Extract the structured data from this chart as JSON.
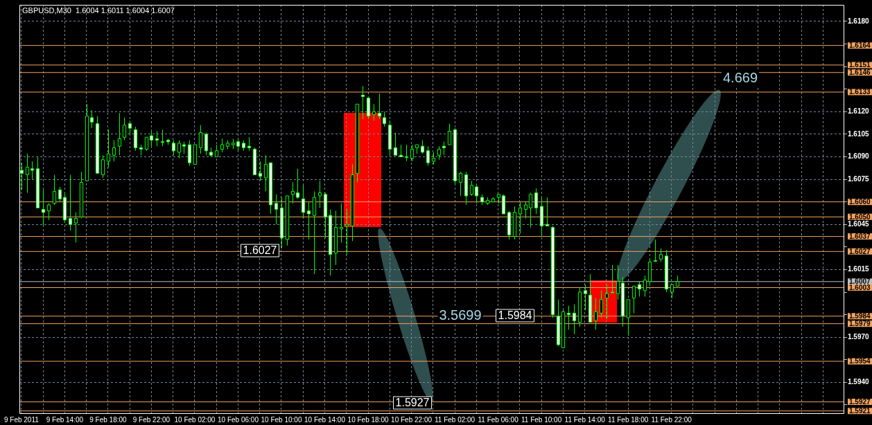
{
  "chart_data": {
    "type": "candlestick",
    "title": "GBPUSD,M30  1.6004 1.6011 1.6004 1.6007",
    "grid": true,
    "colors": [
      "#ffffff",
      "#000000",
      "#ffffff",
      "#ffffff",
      "#ffffff",
      "#000000",
      "#000000",
      "#ffffff",
      "#ffffff",
      "#ffffff",
      "#000000",
      "#000000",
      "#000000",
      "#ffffff",
      "#ffffff",
      "#000000",
      "#000000",
      "#000000",
      "#000000",
      "#000000",
      "#ffffff",
      "#ffffff",
      "#ffffff",
      "#000000",
      "#ffffff",
      "#ffffff",
      "#ffffff",
      "#ffffff",
      "#ffffff",
      "#000000",
      "#ffffff",
      "#ffffff",
      "#000000",
      "#000000",
      "#ffffff",
      "#ffffff",
      "#000000",
      "#000000",
      "#000000",
      "#000000",
      "#ffffff",
      "#ffffff",
      "#ffffff",
      "#ffffff",
      "#ffffff",
      "#000000",
      "#ffffff",
      "#ffffff",
      "#ffffff",
      "#000000",
      "#000000",
      "#ffffff",
      "#ffffff",
      "#ffffff",
      "#000000",
      "#000000",
      "#ffffff",
      "#ffffff",
      "#000000",
      "#000000",
      "#000000",
      "#000000",
      "#000000",
      "#ffffff",
      "#ffffff",
      "#000000",
      "#ffffff",
      "#ffffff",
      "#ffffff",
      "#ffffff",
      "#ffffff",
      "#ffffff",
      "#000000",
      "#000000",
      "#ffffff",
      "#ffffff",
      "#000000",
      "#000000",
      "#ffffff",
      "#000000",
      "#ffffff",
      "#000000",
      "#ffffff",
      "#000000",
      "#ffffff",
      "#ffffff",
      "#000000",
      "#000000",
      "#000000",
      "#ffffff",
      "#ffffff",
      "#000000",
      "#000000",
      "#000000",
      "#000000",
      "#ffffff",
      "#ffffff",
      "#ffffff",
      "#ffffff",
      "#ffffff",
      "#000000",
      "#ffffff",
      "#ffffff",
      "#000000",
      "#ffffff",
      "#ffffff",
      "#000000",
      "#000000",
      "#000000",
      "#ffffff",
      "#000000",
      "#ffffff",
      "#000000",
      "#000000",
      "#ffffff",
      "#000000",
      "#000000",
      "#ffffff",
      "#000000",
      "#ffffff",
      "#000000",
      "#000000"
    ],
    "x": [
      "2011-02-09T10:00",
      "2011-02-09T10:30",
      "2011-02-09T11:00",
      "2011-02-09T11:30",
      "2011-02-09T12:00",
      "2011-02-09T12:30",
      "2011-02-09T13:00",
      "2011-02-09T13:30",
      "2011-02-09T14:00",
      "2011-02-09T14:30",
      "2011-02-09T15:00",
      "2011-02-09T15:30",
      "2011-02-09T16:00",
      "2011-02-09T16:30",
      "2011-02-09T17:00",
      "2011-02-09T17:30",
      "2011-02-09T18:00",
      "2011-02-09T18:30",
      "2011-02-09T19:00",
      "2011-02-09T19:30",
      "2011-02-09T20:00",
      "2011-02-09T20:30",
      "2011-02-09T21:00",
      "2011-02-09T21:30",
      "2011-02-09T22:00",
      "2011-02-09T22:30",
      "2011-02-09T23:00",
      "2011-02-09T23:30",
      "2011-02-10T00:00",
      "2011-02-10T00:30",
      "2011-02-10T01:00",
      "2011-02-10T01:30",
      "2011-02-10T02:00",
      "2011-02-10T02:30",
      "2011-02-10T03:00",
      "2011-02-10T03:30",
      "2011-02-10T04:00",
      "2011-02-10T04:30",
      "2011-02-10T05:00",
      "2011-02-10T05:30",
      "2011-02-10T06:00",
      "2011-02-10T06:30",
      "2011-02-10T07:00",
      "2011-02-10T07:30",
      "2011-02-10T08:00",
      "2011-02-10T08:30",
      "2011-02-10T09:00",
      "2011-02-10T09:30",
      "2011-02-10T10:00",
      "2011-02-10T10:30",
      "2011-02-10T11:00",
      "2011-02-10T11:30",
      "2011-02-10T12:00",
      "2011-02-10T12:30",
      "2011-02-10T13:00",
      "2011-02-10T13:30",
      "2011-02-10T14:00",
      "2011-02-10T14:30",
      "2011-02-10T15:00",
      "2011-02-10T15:30",
      "2011-02-10T16:00",
      "2011-02-10T16:30",
      "2011-02-10T17:00",
      "2011-02-10T17:30",
      "2011-02-10T18:00",
      "2011-02-10T18:30",
      "2011-02-10T19:00",
      "2011-02-10T19:30",
      "2011-02-10T20:00",
      "2011-02-10T20:30",
      "2011-02-10T21:00",
      "2011-02-10T21:30",
      "2011-02-10T22:00",
      "2011-02-10T22:30",
      "2011-02-10T23:00",
      "2011-02-10T23:30",
      "2011-02-11T00:00",
      "2011-02-11T00:30",
      "2011-02-11T01:00",
      "2011-02-11T01:30",
      "2011-02-11T02:00",
      "2011-02-11T02:30",
      "2011-02-11T03:00",
      "2011-02-11T03:30",
      "2011-02-11T04:00",
      "2011-02-11T04:30",
      "2011-02-11T05:00",
      "2011-02-11T05:30",
      "2011-02-11T06:00",
      "2011-02-11T06:30",
      "2011-02-11T07:00",
      "2011-02-11T07:30",
      "2011-02-11T08:00",
      "2011-02-11T08:30",
      "2011-02-11T09:00",
      "2011-02-11T09:30",
      "2011-02-11T10:00",
      "2011-02-11T10:30",
      "2011-02-11T11:00",
      "2011-02-11T11:30",
      "2011-02-11T12:00",
      "2011-02-11T12:30",
      "2011-02-11T13:00",
      "2011-02-11T13:30",
      "2011-02-11T14:00",
      "2011-02-11T14:30",
      "2011-02-11T15:00",
      "2011-02-11T15:30",
      "2011-02-11T16:00",
      "2011-02-11T16:30",
      "2011-02-11T17:00",
      "2011-02-11T17:30",
      "2011-02-11T18:00",
      "2011-02-11T18:30",
      "2011-02-11T19:00",
      "2011-02-11T19:30",
      "2011-02-11T20:00",
      "2011-02-11T20:30",
      "2011-02-11T21:00",
      "2011-02-11T21:30",
      "2011-02-11T22:00",
      "2011-02-11T22:30"
    ],
    "ohlc": [
      [
        1.6081,
        1.6086,
        1.6068,
        1.6079
      ],
      [
        1.6078,
        1.6092,
        1.6066,
        1.6083
      ],
      [
        1.6082,
        1.6087,
        1.6075,
        1.6081
      ],
      [
        1.6082,
        1.609,
        1.6056,
        1.6056
      ],
      [
        1.6055,
        1.6068,
        1.6044,
        1.6053
      ],
      [
        1.6054,
        1.6059,
        1.6048,
        1.6058
      ],
      [
        1.6059,
        1.6078,
        1.6058,
        1.6067
      ],
      [
        1.6068,
        1.607,
        1.606,
        1.6062
      ],
      [
        1.6063,
        1.6066,
        1.6046,
        1.6048
      ],
      [
        1.6049,
        1.6078,
        1.6041,
        1.6045
      ],
      [
        1.6046,
        1.6053,
        1.6033,
        1.6049
      ],
      [
        1.605,
        1.608,
        1.6049,
        1.6073
      ],
      [
        1.6074,
        1.6125,
        1.6074,
        1.6117
      ],
      [
        1.6116,
        1.6121,
        1.6109,
        1.6113
      ],
      [
        1.6112,
        1.6117,
        1.6079,
        1.6079
      ],
      [
        1.6078,
        1.6091,
        1.6076,
        1.6088
      ],
      [
        1.6087,
        1.6108,
        1.6083,
        1.6092
      ],
      [
        1.6091,
        1.6101,
        1.6087,
        1.6096
      ],
      [
        1.6097,
        1.6119,
        1.6091,
        1.6102
      ],
      [
        1.6103,
        1.6116,
        1.6101,
        1.6111
      ],
      [
        1.6112,
        1.6114,
        1.6105,
        1.6109
      ],
      [
        1.6108,
        1.611,
        1.6094,
        1.6096
      ],
      [
        1.6096,
        1.6098,
        1.6091,
        1.6095
      ],
      [
        1.6095,
        1.6103,
        1.6094,
        1.6103
      ],
      [
        1.6104,
        1.6107,
        1.6097,
        1.6101
      ],
      [
        1.6102,
        1.6107,
        1.6097,
        1.6101
      ],
      [
        1.61,
        1.6108,
        1.6097,
        1.61
      ],
      [
        1.6101,
        1.6102,
        1.6098,
        1.61
      ],
      [
        1.6099,
        1.6101,
        1.6091,
        1.6094
      ],
      [
        1.6093,
        1.6101,
        1.6089,
        1.6099
      ],
      [
        1.6098,
        1.61,
        1.6092,
        1.6097
      ],
      [
        1.6098,
        1.6101,
        1.6084,
        1.6086
      ],
      [
        1.6085,
        1.6098,
        1.6085,
        1.6098
      ],
      [
        1.6096,
        1.6111,
        1.6092,
        1.6106
      ],
      [
        1.6105,
        1.6106,
        1.6091,
        1.6094
      ],
      [
        1.6093,
        1.6096,
        1.609,
        1.6091
      ],
      [
        1.609,
        1.6098,
        1.609,
        1.6094
      ],
      [
        1.6095,
        1.6102,
        1.6093,
        1.6098
      ],
      [
        1.6097,
        1.6101,
        1.6095,
        1.6099
      ],
      [
        1.6098,
        1.6102,
        1.6095,
        1.6099
      ],
      [
        1.61,
        1.6102,
        1.6094,
        1.6097
      ],
      [
        1.6099,
        1.6101,
        1.6094,
        1.6096
      ],
      [
        1.6097,
        1.6103,
        1.6094,
        1.6096
      ],
      [
        1.6095,
        1.6096,
        1.6078,
        1.6078
      ],
      [
        1.6079,
        1.6087,
        1.6074,
        1.6077
      ],
      [
        1.6076,
        1.6091,
        1.6067,
        1.6085
      ],
      [
        1.6086,
        1.6086,
        1.6052,
        1.6058
      ],
      [
        1.6059,
        1.6065,
        1.6045,
        1.6055
      ],
      [
        1.6056,
        1.6063,
        1.6029,
        1.6036
      ],
      [
        1.6035,
        1.6064,
        1.6031,
        1.6064
      ],
      [
        1.6065,
        1.6073,
        1.6059,
        1.6067
      ],
      [
        1.6066,
        1.6082,
        1.6062,
        1.6063
      ],
      [
        1.6062,
        1.6071,
        1.605,
        1.6053
      ],
      [
        1.6054,
        1.606,
        1.6035,
        1.6052
      ],
      [
        1.6051,
        1.6067,
        1.6012,
        1.6063
      ],
      [
        1.6064,
        1.6074,
        1.6056,
        1.6066
      ],
      [
        1.6065,
        1.6066,
        1.6036,
        1.605
      ],
      [
        1.6051,
        1.6055,
        1.6011,
        1.6025
      ],
      [
        1.6026,
        1.6054,
        1.6018,
        1.6043
      ],
      [
        1.6042,
        1.6059,
        1.6033,
        1.6043
      ],
      [
        1.6044,
        1.6055,
        1.6025,
        1.6045
      ],
      [
        1.6044,
        1.6085,
        1.6034,
        1.6078
      ],
      [
        1.6079,
        1.6125,
        1.6073,
        1.6125
      ],
      [
        1.6131,
        1.6137,
        1.6115,
        1.613
      ],
      [
        1.6129,
        1.6129,
        1.6115,
        1.6117
      ],
      [
        1.6118,
        1.6125,
        1.6114,
        1.612
      ],
      [
        1.6119,
        1.6132,
        1.6115,
        1.6117
      ],
      [
        1.6116,
        1.612,
        1.611,
        1.6112
      ],
      [
        1.6111,
        1.6114,
        1.6091,
        1.6095
      ],
      [
        1.6096,
        1.6106,
        1.6091,
        1.6091
      ],
      [
        1.6091,
        1.6098,
        1.609,
        1.609
      ],
      [
        1.609,
        1.6098,
        1.6087,
        1.609
      ],
      [
        1.6089,
        1.6098,
        1.6087,
        1.6095
      ],
      [
        1.6096,
        1.6098,
        1.6092,
        1.6098
      ],
      [
        1.6097,
        1.6101,
        1.6092,
        1.6093
      ],
      [
        1.6094,
        1.6097,
        1.6084,
        1.6086
      ],
      [
        1.6087,
        1.6093,
        1.6085,
        1.6089
      ],
      [
        1.6091,
        1.6097,
        1.6088,
        1.6095
      ],
      [
        1.6097,
        1.61,
        1.6091,
        1.6096
      ],
      [
        1.6098,
        1.6112,
        1.6098,
        1.6107
      ],
      [
        1.6108,
        1.6109,
        1.6072,
        1.6074
      ],
      [
        1.6073,
        1.608,
        1.6064,
        1.6079
      ],
      [
        1.6078,
        1.608,
        1.6058,
        1.6064
      ],
      [
        1.6065,
        1.6074,
        1.6064,
        1.6071
      ],
      [
        1.607,
        1.6071,
        1.6059,
        1.6064
      ],
      [
        1.6063,
        1.6065,
        1.6058,
        1.606
      ],
      [
        1.6059,
        1.6063,
        1.6058,
        1.6061
      ],
      [
        1.606,
        1.6063,
        1.606,
        1.6062
      ],
      [
        1.6063,
        1.6065,
        1.6059,
        1.6065
      ],
      [
        1.6064,
        1.6065,
        1.6052,
        1.6052
      ],
      [
        1.6053,
        1.6054,
        1.6035,
        1.6038
      ],
      [
        1.6037,
        1.6057,
        1.6035,
        1.6053
      ],
      [
        1.6052,
        1.606,
        1.6039,
        1.6056
      ],
      [
        1.6055,
        1.606,
        1.6049,
        1.6058
      ],
      [
        1.6056,
        1.6066,
        1.6043,
        1.6065
      ],
      [
        1.6066,
        1.6069,
        1.6052,
        1.6056
      ],
      [
        1.6057,
        1.6063,
        1.6037,
        1.6044
      ],
      [
        1.6045,
        1.6063,
        1.6044,
        1.6044
      ],
      [
        1.6043,
        1.6044,
        1.5983,
        1.5985
      ],
      [
        1.5984,
        1.5995,
        1.5964,
        1.5965
      ],
      [
        1.5963,
        1.5988,
        1.5963,
        1.5987
      ],
      [
        1.5986,
        1.5991,
        1.5975,
        1.5985
      ],
      [
        1.5986,
        1.5992,
        1.5972,
        1.5981
      ],
      [
        1.598,
        1.6003,
        1.5977,
        1.6
      ],
      [
        1.6001,
        1.6005,
        1.5988,
        1.5999
      ],
      [
        1.5998,
        1.6012,
        1.598,
        1.598
      ],
      [
        1.5981,
        1.5996,
        1.5975,
        1.5987
      ],
      [
        1.5986,
        1.6001,
        1.5983,
        1.5995
      ],
      [
        1.5996,
        1.6005,
        1.5982,
        1.5999
      ],
      [
        1.6,
        1.6018,
        1.6,
        1.6
      ],
      [
        1.5999,
        1.6018,
        1.5995,
        1.6007
      ],
      [
        1.6006,
        1.601,
        1.5977,
        1.5984
      ],
      [
        1.5983,
        1.5995,
        1.5971,
        1.5995
      ],
      [
        1.5996,
        1.6004,
        1.5986,
        1.6004
      ],
      [
        1.6005,
        1.6007,
        1.5997,
        1.6002
      ],
      [
        1.6001,
        1.6011,
        1.5997,
        1.6008
      ],
      [
        1.6007,
        1.6022,
        1.6004,
        1.602
      ],
      [
        1.6021,
        1.6035,
        1.602,
        1.6021
      ],
      [
        1.6022,
        1.6029,
        1.602,
        1.6025
      ],
      [
        1.6024,
        1.6028,
        1.6,
        1.6002
      ],
      [
        1.6,
        1.6005,
        1.5996,
        1.6005
      ],
      [
        1.6004,
        1.6011,
        1.6004,
        1.6007
      ]
    ],
    "xlim": [
      "2011-02-09T09:49",
      "2011-02-12T13:57"
    ],
    "xticks": [
      {
        "value": "2011-02-09T10:00",
        "label": "9 Feb 2011"
      },
      {
        "value": "2011-02-09T12:00",
        "label": null
      },
      {
        "value": "2011-02-09T14:00",
        "label": "9 Feb 14:00"
      },
      {
        "value": "2011-02-09T16:00",
        "label": null
      },
      {
        "value": "2011-02-09T18:00",
        "label": "9 Feb 18:00"
      },
      {
        "value": "2011-02-09T20:00",
        "label": null
      },
      {
        "value": "2011-02-09T22:00",
        "label": "9 Feb 22:00"
      },
      {
        "value": "2011-02-10T00:00",
        "label": null
      },
      {
        "value": "2011-02-10T02:00",
        "label": "10 Feb 02:00"
      },
      {
        "value": "2011-02-10T04:00",
        "label": null
      },
      {
        "value": "2011-02-10T06:00",
        "label": "10 Feb 06:00"
      },
      {
        "value": "2011-02-10T08:00",
        "label": null
      },
      {
        "value": "2011-02-10T10:00",
        "label": "10 Feb 10:00"
      },
      {
        "value": "2011-02-10T12:00",
        "label": null
      },
      {
        "value": "2011-02-10T14:00",
        "label": "10 Feb 14:00"
      },
      {
        "value": "2011-02-10T16:00",
        "label": null
      },
      {
        "value": "2011-02-10T18:00",
        "label": "10 Feb 18:00"
      },
      {
        "value": "2011-02-10T20:00",
        "label": null
      },
      {
        "value": "2011-02-10T22:00",
        "label": "10 Feb 22:00"
      },
      {
        "value": "2011-02-11T00:00",
        "label": null
      },
      {
        "value": "2011-02-11T02:00",
        "label": "11 Feb 02:00"
      },
      {
        "value": "2011-02-11T04:00",
        "label": null
      },
      {
        "value": "2011-02-11T06:00",
        "label": "11 Feb 06:00"
      },
      {
        "value": "2011-02-11T08:00",
        "label": null
      },
      {
        "value": "2011-02-11T10:00",
        "label": "11 Feb 10:00"
      },
      {
        "value": "2011-02-11T12:00",
        "label": null
      },
      {
        "value": "2011-02-11T14:00",
        "label": "11 Feb 14:00"
      },
      {
        "value": "2011-02-11T16:00",
        "label": null
      },
      {
        "value": "2011-02-11T18:00",
        "label": "11 Feb 18:00"
      },
      {
        "value": "2011-02-11T20:00",
        "label": null
      },
      {
        "value": "2011-02-11T22:00",
        "label": "11 Feb 22:00"
      },
      {
        "value": "2011-02-12T00:00",
        "label": null
      },
      {
        "value": "2011-02-12T02:00",
        "label": null
      },
      {
        "value": "2011-02-12T04:00",
        "label": null
      },
      {
        "value": "2011-02-12T06:00",
        "label": null
      },
      {
        "value": "2011-02-12T08:00",
        "label": null
      },
      {
        "value": "2011-02-12T10:00",
        "label": null
      },
      {
        "value": "2011-02-12T12:00",
        "label": null
      }
    ],
    "ylim": [
      1.5919,
      1.6191
    ],
    "yticks": [
      {
        "value": 1.618,
        "label": "1.6180"
      },
      {
        "value": 1.6165,
        "label": null
      },
      {
        "value": 1.615,
        "label": null
      },
      {
        "value": 1.6135,
        "label": null
      },
      {
        "value": 1.612,
        "label": "1.6120"
      },
      1.6105,
      {
        "value": 1.609,
        "label": "1.6090"
      },
      1.6075,
      {
        "value": 1.606,
        "label": null
      },
      1.6045,
      {
        "value": 1.603,
        "label": null
      },
      1.6015,
      {
        "value": 1.6,
        "label": null
      },
      {
        "value": 1.5985,
        "label": null
      },
      {
        "value": 1.597,
        "label": "1.5970"
      },
      {
        "value": 1.5955,
        "label": null
      },
      {
        "value": 1.594,
        "label": "1.5940"
      },
      {
        "value": 1.5925,
        "label": null
      }
    ],
    "ref_lines": [
      {
        "axis": "y",
        "value": 1.6164,
        "label": "1.6164",
        "color": "#f4a460"
      },
      {
        "axis": "y",
        "value": 1.6151,
        "label": "1.6151",
        "color": "#f4a460"
      },
      {
        "axis": "y",
        "value": 1.6146,
        "label": "1.6146",
        "color": "#f4a460"
      },
      {
        "axis": "y",
        "value": 1.6133,
        "label": "1.6133",
        "color": "#f4a460"
      },
      {
        "axis": "y",
        "value": 1.606,
        "label": "1.6060",
        "color": "#f4a460"
      },
      {
        "axis": "y",
        "value": 1.605,
        "label": "1.6050",
        "color": "#f4a460"
      },
      {
        "axis": "y",
        "value": 1.6037,
        "label": "1.6037",
        "color": "#f4a460"
      },
      {
        "axis": "y",
        "value": 1.6027,
        "label": "1.6027",
        "color": "#f4a460"
      },
      {
        "axis": "y",
        "value": 1.6007,
        "label": "1.6007",
        "color": "#c0c0c0"
      },
      {
        "axis": "y",
        "value": 1.6003,
        "label": "1.6003",
        "color": "#f4a460"
      },
      {
        "axis": "y",
        "value": 1.5984,
        "label": "1.5984",
        "color": "#f4a460"
      },
      {
        "axis": "y",
        "value": 1.5979,
        "label": "1.5979",
        "color": "#f4a460"
      },
      {
        "axis": "y",
        "value": 1.5954,
        "label": "1.5954",
        "color": "#f4a460"
      },
      {
        "axis": "y",
        "value": 1.5927,
        "label": "1.5927",
        "color": "#f4a460"
      },
      {
        "axis": "y",
        "value": 1.5921,
        "label": "1.5921",
        "color": "#f4a460"
      }
    ],
    "annotations": [
      "1.6027",
      "1.5927",
      "1.5984",
      "3.5699",
      "4.669"
    ]
  }
}
